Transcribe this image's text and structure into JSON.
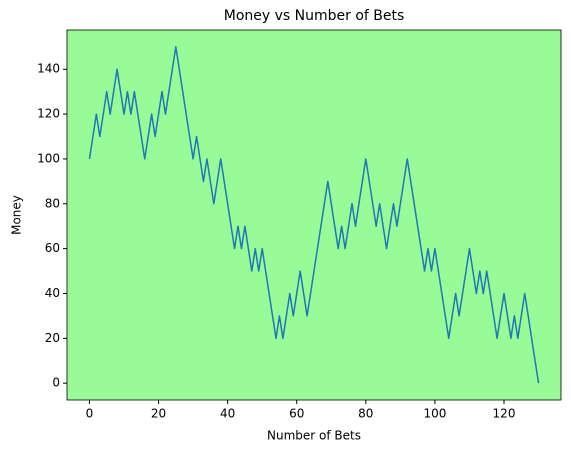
{
  "chart_data": {
    "type": "line",
    "title": "Money vs Number of Bets",
    "x_label": "Number of Bets",
    "y_label": "Money",
    "x": [
      0,
      1,
      2,
      3,
      4,
      5,
      6,
      7,
      8,
      9,
      10,
      11,
      12,
      13,
      14,
      15,
      16,
      17,
      18,
      19,
      20,
      21,
      22,
      23,
      24,
      25,
      26,
      27,
      28,
      29,
      30,
      31,
      32,
      33,
      34,
      35,
      36,
      37,
      38,
      39,
      40,
      41,
      42,
      43,
      44,
      45,
      46,
      47,
      48,
      49,
      50,
      51,
      52,
      53,
      54,
      55,
      56,
      57,
      58,
      59,
      60,
      61,
      62,
      63,
      64,
      65,
      66,
      67,
      68,
      69,
      70,
      71,
      72,
      73,
      74,
      75,
      76,
      77,
      78,
      79,
      80,
      81,
      82,
      83,
      84,
      85,
      86,
      87,
      88,
      89,
      90,
      91,
      92,
      93,
      94,
      95,
      96,
      97,
      98,
      99,
      100,
      101,
      102,
      103,
      104,
      105,
      106,
      107,
      108,
      109,
      110,
      111,
      112,
      113,
      114,
      115,
      116,
      117,
      118,
      119,
      120,
      121,
      122,
      123,
      124,
      125,
      126,
      127,
      128,
      129,
      130
    ],
    "values": [
      100,
      110,
      120,
      110,
      120,
      130,
      120,
      130,
      140,
      130,
      120,
      130,
      120,
      130,
      120,
      110,
      100,
      110,
      120,
      110,
      120,
      130,
      120,
      130,
      140,
      150,
      140,
      130,
      120,
      110,
      100,
      110,
      100,
      90,
      100,
      90,
      80,
      90,
      100,
      90,
      80,
      70,
      60,
      70,
      60,
      70,
      60,
      50,
      60,
      50,
      60,
      50,
      40,
      30,
      20,
      30,
      20,
      30,
      40,
      30,
      40,
      50,
      40,
      30,
      40,
      50,
      60,
      70,
      80,
      90,
      80,
      70,
      60,
      70,
      60,
      70,
      80,
      70,
      80,
      90,
      100,
      90,
      80,
      70,
      80,
      70,
      60,
      70,
      80,
      70,
      80,
      90,
      100,
      90,
      80,
      70,
      60,
      50,
      60,
      50,
      60,
      50,
      40,
      30,
      20,
      30,
      40,
      30,
      40,
      50,
      60,
      50,
      40,
      50,
      40,
      50,
      40,
      30,
      20,
      30,
      40,
      30,
      20,
      30,
      20,
      30,
      40,
      30,
      20,
      10,
      0
    ],
    "color": "#1f77b4",
    "background": "#98fb98",
    "xlim": [
      -6.5,
      136.5
    ],
    "ylim": [
      -7.5,
      157.5
    ],
    "xticks": [
      0,
      20,
      40,
      60,
      80,
      100,
      120
    ],
    "yticks": [
      0,
      20,
      40,
      60,
      80,
      100,
      120,
      140
    ]
  }
}
